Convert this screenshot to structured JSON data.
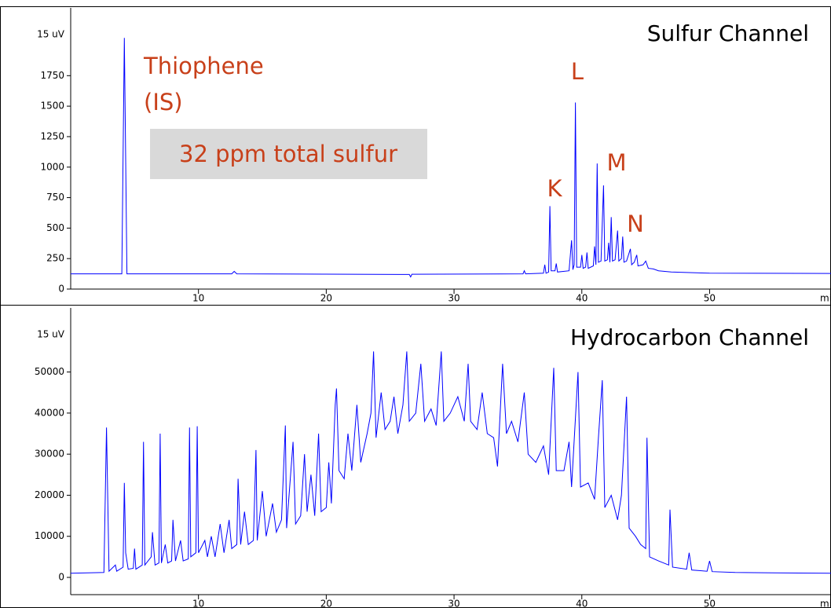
{
  "chart_data": [
    {
      "type": "line",
      "y_label": "15 uV",
      "x_label": "mi",
      "color": "#0000ff",
      "annotations": [
        "Sulfur Channel",
        "Thiophene",
        "(IS)",
        "32 ppm total sulfur",
        "K",
        "L",
        "M",
        "N"
      ],
      "xlim": [
        0,
        59.5
      ],
      "xticks": [
        10,
        20,
        30,
        40,
        50
      ],
      "ylim": [
        0,
        2306
      ],
      "yticks": [
        0,
        250,
        500,
        750,
        1000,
        1250,
        1500,
        1750
      ],
      "x": [
        0,
        4.0,
        4.2,
        4.4,
        12.6,
        12.8,
        13.0,
        26.5,
        26.6,
        26.7,
        35.4,
        35.5,
        35.6,
        37.0,
        37.1,
        37.2,
        37.4,
        37.5,
        37.6,
        37.9,
        38.0,
        38.1,
        39.0,
        39.2,
        39.3,
        39.4,
        39.5,
        39.6,
        39.9,
        40.0,
        40.1,
        40.3,
        40.4,
        40.5,
        40.9,
        41.0,
        41.1,
        41.2,
        41.3,
        41.5,
        41.7,
        41.8,
        42.0,
        42.1,
        42.2,
        42.3,
        42.4,
        42.6,
        42.8,
        42.9,
        43.1,
        43.2,
        43.3,
        43.5,
        43.8,
        43.9,
        44.1,
        44.3,
        44.4,
        44.8,
        45.0,
        45.2,
        45.6,
        46.0,
        47,
        50,
        59.5
      ],
      "values": [
        125,
        125,
        2060,
        125,
        125,
        145,
        125,
        120,
        100,
        122,
        125,
        150,
        125,
        130,
        200,
        130,
        140,
        680,
        150,
        150,
        210,
        140,
        150,
        400,
        160,
        200,
        1530,
        180,
        180,
        280,
        170,
        180,
        300,
        170,
        190,
        350,
        200,
        1030,
        220,
        230,
        850,
        230,
        240,
        380,
        220,
        590,
        230,
        240,
        480,
        230,
        250,
        430,
        220,
        230,
        330,
        200,
        220,
        280,
        190,
        200,
        230,
        170,
        165,
        150,
        140,
        130,
        128
      ]
    },
    {
      "type": "line",
      "y_label": "15 uV",
      "x_label": "mi",
      "color": "#0000ff",
      "annotations": [
        "Hydrocarbon Channel"
      ],
      "xlim": [
        0,
        59.5
      ],
      "xticks": [
        10,
        20,
        30,
        40,
        50
      ],
      "ylim": [
        -4200,
        65600
      ],
      "yticks": [
        0,
        10000,
        20000,
        30000,
        40000,
        50000
      ],
      "x": [
        0,
        2.6,
        2.8,
        3.0,
        3.5,
        3.6,
        4.1,
        4.2,
        4.3,
        4.5,
        4.9,
        5.0,
        5.1,
        5.6,
        5.7,
        5.8,
        6.3,
        6.4,
        6.6,
        6.9,
        7.0,
        7.1,
        7.4,
        7.6,
        7.9,
        8.0,
        8.2,
        8.6,
        8.8,
        9.2,
        9.3,
        9.4,
        9.8,
        9.9,
        10.0,
        10.5,
        10.7,
        11.0,
        11.3,
        11.7,
        12.0,
        12.4,
        12.6,
        13.0,
        13.1,
        13.3,
        13.6,
        13.9,
        14.3,
        14.5,
        14.6,
        15.0,
        15.3,
        15.8,
        16.1,
        16.5,
        16.8,
        16.9,
        17.4,
        17.6,
        18.0,
        18.3,
        18.5,
        18.8,
        19.1,
        19.4,
        19.6,
        20.0,
        20.2,
        20.4,
        20.7,
        20.8,
        21.0,
        21.4,
        21.7,
        22.0,
        22.4,
        22.7,
        23.2,
        23.5,
        23.7,
        23.9,
        24.3,
        24.6,
        25.0,
        25.3,
        25.6,
        26.0,
        26.3,
        26.5,
        27.0,
        27.4,
        27.7,
        28.2,
        28.6,
        29.0,
        29.2,
        29.7,
        30.3,
        30.8,
        31.1,
        31.3,
        31.8,
        32.2,
        32.6,
        33.1,
        33.4,
        33.8,
        34.1,
        34.5,
        35.0,
        35.5,
        35.8,
        36.4,
        37.0,
        37.4,
        37.8,
        38.0,
        38.6,
        39.0,
        39.2,
        39.7,
        39.9,
        40.5,
        41.0,
        41.3,
        41.6,
        41.8,
        42.3,
        42.8,
        43.1,
        43.5,
        43.7,
        44.2,
        44.6,
        45.0,
        45.1,
        45.3,
        46.0,
        46.8,
        46.9,
        47.1,
        48.2,
        48.4,
        48.6,
        49.8,
        50.0,
        50.2,
        52,
        55,
        59.5
      ],
      "values": [
        1000,
        1200,
        36500,
        1500,
        3000,
        1500,
        2500,
        23000,
        6000,
        2000,
        2200,
        7000,
        2000,
        3000,
        33000,
        3000,
        5000,
        11000,
        3000,
        3500,
        35000,
        3500,
        8000,
        3500,
        4000,
        14000,
        4000,
        9000,
        4000,
        4500,
        36500,
        5000,
        6000,
        36800,
        6000,
        9000,
        5000,
        10000,
        5000,
        13000,
        6000,
        14000,
        7000,
        8000,
        24000,
        8000,
        16000,
        8000,
        9000,
        31000,
        9000,
        21000,
        10000,
        18000,
        11000,
        14000,
        37000,
        12000,
        33000,
        13000,
        15000,
        30000,
        16000,
        25000,
        15000,
        35000,
        16000,
        17000,
        28000,
        18000,
        42000,
        46000,
        26000,
        24000,
        35000,
        26000,
        42000,
        28000,
        35000,
        40000,
        55000,
        34000,
        45000,
        36000,
        38000,
        44000,
        35000,
        42000,
        55000,
        38000,
        40000,
        52000,
        38000,
        41000,
        37000,
        55000,
        38000,
        40000,
        44000,
        38000,
        52000,
        38000,
        36000,
        45000,
        35000,
        34000,
        27000,
        52000,
        35000,
        38000,
        33000,
        45000,
        30000,
        28000,
        32000,
        25000,
        51000,
        26000,
        26000,
        33000,
        22000,
        50000,
        22000,
        23000,
        19000,
        34000,
        48000,
        17000,
        20000,
        14000,
        20000,
        44000,
        12000,
        10000,
        8000,
        7000,
        34000,
        5000,
        4000,
        3000,
        16500,
        2500,
        2000,
        6000,
        1800,
        1500,
        4000,
        1400,
        1200,
        1100,
        1000
      ]
    }
  ]
}
